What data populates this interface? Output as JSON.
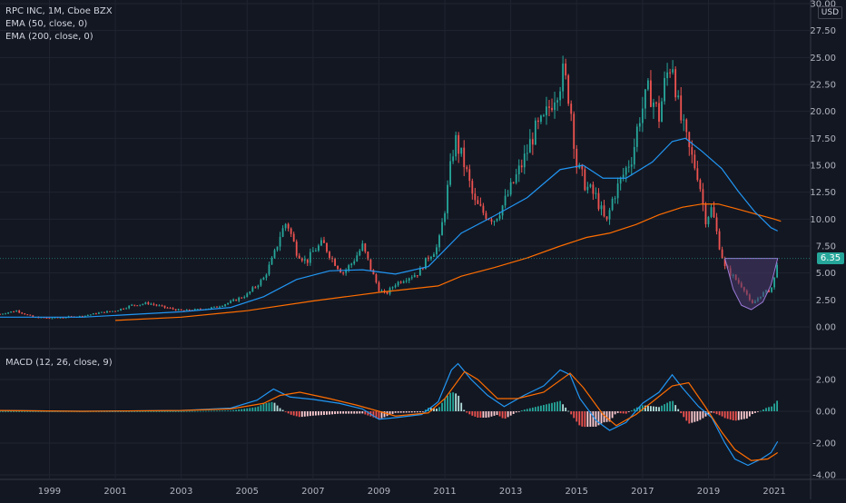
{
  "header": {
    "symbol_line": "RPC INC, 1M, Cboe BZX",
    "ema50_label": "EMA (50, close, 0)",
    "ema200_label": "EMA (200, close, 0)",
    "currency": "USD",
    "last_price": "6.35"
  },
  "macd_panel": {
    "label": "MACD (12, 26, close, 9)"
  },
  "colors": {
    "background": "#131722",
    "up": "#26a69a",
    "down": "#ef5350",
    "ema50": "#2196f3",
    "ema200": "#ff6d00",
    "macd_line": "#2196f3",
    "signal_line": "#ff6d00",
    "pattern_fill": "#4a3a6e",
    "pattern_stroke": "#9c7bd8"
  },
  "chart_data": [
    {
      "type": "candlestick",
      "title": "RPC INC, 1M, Cboe BZX",
      "y_ticks": [
        "0.00",
        "2.50",
        "5.00",
        "7.50",
        "10.00",
        "12.50",
        "15.00",
        "17.50",
        "20.00",
        "22.50",
        "25.00",
        "27.50",
        "30.00"
      ],
      "x_ticks": [
        "1999",
        "2001",
        "2003",
        "2005",
        "2007",
        "2009",
        "2011",
        "2013",
        "2015",
        "2017",
        "2019",
        "2021"
      ],
      "ylim": [
        -1.0,
        30.0
      ],
      "xlim": [
        1997.5,
        2022.1
      ],
      "last_price": 6.35,
      "price_path": [
        [
          1997.5,
          1.2
        ],
        [
          1998.0,
          1.5
        ],
        [
          1998.5,
          0.9
        ],
        [
          1999.0,
          0.8
        ],
        [
          1999.5,
          0.9
        ],
        [
          2000.0,
          1.0
        ],
        [
          2000.5,
          1.3
        ],
        [
          2001.0,
          1.5
        ],
        [
          2001.5,
          2.0
        ],
        [
          2002.0,
          2.2
        ],
        [
          2002.5,
          1.8
        ],
        [
          2003.0,
          1.5
        ],
        [
          2003.5,
          1.6
        ],
        [
          2004.0,
          1.8
        ],
        [
          2004.5,
          2.3
        ],
        [
          2005.0,
          3.0
        ],
        [
          2005.5,
          4.5
        ],
        [
          2005.8,
          6.5
        ],
        [
          2006.0,
          8.5
        ],
        [
          2006.2,
          9.8
        ],
        [
          2006.5,
          7.0
        ],
        [
          2006.8,
          6.0
        ],
        [
          2007.0,
          7.0
        ],
        [
          2007.3,
          7.8
        ],
        [
          2007.6,
          6.2
        ],
        [
          2007.9,
          5.0
        ],
        [
          2008.2,
          6.0
        ],
        [
          2008.5,
          7.5
        ],
        [
          2008.8,
          5.0
        ],
        [
          2009.0,
          3.5
        ],
        [
          2009.2,
          3.0
        ],
        [
          2009.5,
          4.0
        ],
        [
          2009.8,
          4.5
        ],
        [
          2010.2,
          5.0
        ],
        [
          2010.5,
          6.5
        ],
        [
          2010.8,
          7.5
        ],
        [
          2011.0,
          11.0
        ],
        [
          2011.3,
          17.5
        ],
        [
          2011.6,
          15.0
        ],
        [
          2011.9,
          11.5
        ],
        [
          2012.2,
          10.5
        ],
        [
          2012.5,
          10.0
        ],
        [
          2012.8,
          11.5
        ],
        [
          2013.1,
          13.5
        ],
        [
          2013.4,
          15.5
        ],
        [
          2013.7,
          18.0
        ],
        [
          2014.0,
          19.0
        ],
        [
          2014.3,
          21.5
        ],
        [
          2014.6,
          23.5
        ],
        [
          2014.8,
          21.0
        ],
        [
          2015.0,
          15.0
        ],
        [
          2015.3,
          13.0
        ],
        [
          2015.6,
          12.0
        ],
        [
          2015.9,
          9.5
        ],
        [
          2016.1,
          12.0
        ],
        [
          2016.4,
          14.0
        ],
        [
          2016.7,
          16.0
        ],
        [
          2016.9,
          19.5
        ],
        [
          2017.2,
          22.0
        ],
        [
          2017.5,
          19.5
        ],
        [
          2017.7,
          23.0
        ],
        [
          2017.9,
          25.0
        ],
        [
          2018.1,
          20.0
        ],
        [
          2018.4,
          16.5
        ],
        [
          2018.7,
          14.0
        ],
        [
          2018.9,
          10.0
        ],
        [
          2019.1,
          11.0
        ],
        [
          2019.3,
          8.0
        ],
        [
          2019.5,
          5.5
        ],
        [
          2019.8,
          4.5
        ],
        [
          2020.1,
          3.5
        ],
        [
          2020.3,
          2.0
        ],
        [
          2020.6,
          3.0
        ],
        [
          2020.9,
          3.5
        ],
        [
          2021.0,
          4.5
        ],
        [
          2021.1,
          6.35
        ]
      ],
      "ema50": [
        [
          1997.5,
          0.9
        ],
        [
          2000.0,
          0.9
        ],
        [
          2003.0,
          1.4
        ],
        [
          2004.5,
          1.8
        ],
        [
          2005.5,
          2.8
        ],
        [
          2006.5,
          4.4
        ],
        [
          2007.5,
          5.2
        ],
        [
          2008.5,
          5.3
        ],
        [
          2009.5,
          4.9
        ],
        [
          2010.5,
          5.6
        ],
        [
          2011.5,
          8.7
        ],
        [
          2012.5,
          10.3
        ],
        [
          2013.5,
          12.0
        ],
        [
          2014.5,
          14.6
        ],
        [
          2015.2,
          15.0
        ],
        [
          2015.8,
          13.8
        ],
        [
          2016.5,
          13.8
        ],
        [
          2017.3,
          15.3
        ],
        [
          2017.9,
          17.2
        ],
        [
          2018.3,
          17.5
        ],
        [
          2018.8,
          16.3
        ],
        [
          2019.4,
          14.7
        ],
        [
          2019.9,
          12.6
        ],
        [
          2020.4,
          10.7
        ],
        [
          2020.9,
          9.2
        ],
        [
          2021.1,
          8.9
        ]
      ],
      "ema200": [
        [
          2001.0,
          0.6
        ],
        [
          2003.0,
          0.9
        ],
        [
          2005.0,
          1.5
        ],
        [
          2007.0,
          2.4
        ],
        [
          2009.0,
          3.2
        ],
        [
          2010.8,
          3.8
        ],
        [
          2011.5,
          4.7
        ],
        [
          2012.5,
          5.5
        ],
        [
          2013.5,
          6.4
        ],
        [
          2014.5,
          7.5
        ],
        [
          2015.3,
          8.3
        ],
        [
          2016.0,
          8.7
        ],
        [
          2016.8,
          9.5
        ],
        [
          2017.5,
          10.4
        ],
        [
          2018.2,
          11.1
        ],
        [
          2018.8,
          11.4
        ],
        [
          2019.3,
          11.4
        ],
        [
          2019.8,
          11.0
        ],
        [
          2020.4,
          10.5
        ],
        [
          2021.0,
          10.0
        ],
        [
          2021.2,
          9.8
        ]
      ],
      "cup_pattern": [
        [
          2019.5,
          6.35
        ],
        [
          2019.75,
          3.5
        ],
        [
          2020.0,
          2.0
        ],
        [
          2020.3,
          1.6
        ],
        [
          2020.65,
          2.3
        ],
        [
          2020.9,
          3.9
        ],
        [
          2021.1,
          6.35
        ]
      ]
    },
    {
      "type": "line",
      "title": "MACD (12, 26, close, 9)",
      "y_ticks": [
        "2.00",
        "0.00",
        "-2.00",
        "-4.00"
      ],
      "ylim": [
        -4.2,
        3.2
      ],
      "macd": [
        [
          1997.5,
          0.05
        ],
        [
          2000.0,
          0.0
        ],
        [
          2003.0,
          0.05
        ],
        [
          2004.5,
          0.2
        ],
        [
          2005.3,
          0.7
        ],
        [
          2005.8,
          1.4
        ],
        [
          2006.3,
          0.9
        ],
        [
          2007.0,
          0.75
        ],
        [
          2007.8,
          0.5
        ],
        [
          2008.5,
          0.15
        ],
        [
          2009.0,
          -0.5
        ],
        [
          2009.5,
          -0.4
        ],
        [
          2010.3,
          -0.2
        ],
        [
          2010.8,
          0.6
        ],
        [
          2011.2,
          2.6
        ],
        [
          2011.4,
          3.0
        ],
        [
          2011.8,
          2.0
        ],
        [
          2012.3,
          1.0
        ],
        [
          2012.8,
          0.3
        ],
        [
          2013.4,
          1.0
        ],
        [
          2014.0,
          1.6
        ],
        [
          2014.5,
          2.6
        ],
        [
          2014.8,
          2.3
        ],
        [
          2015.1,
          0.8
        ],
        [
          2015.6,
          -0.6
        ],
        [
          2016.0,
          -1.2
        ],
        [
          2016.5,
          -0.7
        ],
        [
          2017.0,
          0.5
        ],
        [
          2017.5,
          1.2
        ],
        [
          2017.9,
          2.3
        ],
        [
          2018.2,
          1.5
        ],
        [
          2018.7,
          0.3
        ],
        [
          2019.1,
          -0.4
        ],
        [
          2019.5,
          -2.0
        ],
        [
          2019.8,
          -3.0
        ],
        [
          2020.2,
          -3.4
        ],
        [
          2020.6,
          -3.0
        ],
        [
          2020.9,
          -2.6
        ],
        [
          2021.1,
          -1.9
        ]
      ],
      "signal": [
        [
          1997.5,
          0.05
        ],
        [
          2000.0,
          0.0
        ],
        [
          2003.0,
          0.05
        ],
        [
          2004.5,
          0.15
        ],
        [
          2005.5,
          0.5
        ],
        [
          2006.0,
          1.0
        ],
        [
          2006.6,
          1.2
        ],
        [
          2007.5,
          0.8
        ],
        [
          2008.3,
          0.4
        ],
        [
          2009.0,
          0.0
        ],
        [
          2009.5,
          -0.3
        ],
        [
          2010.5,
          -0.1
        ],
        [
          2011.0,
          0.8
        ],
        [
          2011.6,
          2.5
        ],
        [
          2012.0,
          2.0
        ],
        [
          2012.6,
          0.8
        ],
        [
          2013.2,
          0.8
        ],
        [
          2014.0,
          1.2
        ],
        [
          2014.8,
          2.4
        ],
        [
          2015.2,
          1.5
        ],
        [
          2015.8,
          -0.2
        ],
        [
          2016.2,
          -0.9
        ],
        [
          2016.8,
          -0.2
        ],
        [
          2017.3,
          0.6
        ],
        [
          2017.9,
          1.6
        ],
        [
          2018.4,
          1.8
        ],
        [
          2018.9,
          0.3
        ],
        [
          2019.4,
          -1.3
        ],
        [
          2019.8,
          -2.4
        ],
        [
          2020.3,
          -3.1
        ],
        [
          2020.8,
          -3.0
        ],
        [
          2021.1,
          -2.6
        ]
      ]
    }
  ]
}
